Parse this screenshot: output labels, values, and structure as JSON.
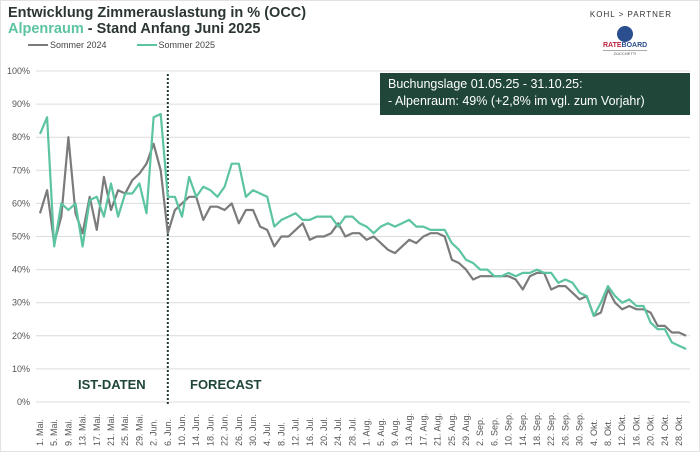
{
  "header": {
    "title_line1": "Entwicklung Zimmerauslastung in % (OCC)",
    "region": "Alpenraum",
    "title_line2_rest": " - Stand Anfang Juni 2025"
  },
  "brand": {
    "kohl": "KOHL > PARTNER",
    "rateboard_a": "RATE",
    "rateboard_b": "BOARD",
    "zucchetti": "ZUCCHETTI"
  },
  "annotation": {
    "line1": "Buchungslage 01.05.25 - 31.10.25:",
    "line2": "- Alpenraum:  49% (+2,8% im vgl. zum Vorjahr)"
  },
  "phases": {
    "actual": "IST-DATEN",
    "forecast": "FORECAST"
  },
  "colors": {
    "s2024": "#7b7b7b",
    "s2025": "#5cc4a0",
    "box": "#1f4638"
  },
  "chart_data": {
    "type": "line",
    "title": "Entwicklung Zimmerauslastung in % (OCC)",
    "xlabel": "",
    "ylabel": "",
    "ylim": [
      0,
      100
    ],
    "yticks": [
      "0%",
      "10%",
      "20%",
      "30%",
      "40%",
      "50%",
      "60%",
      "70%",
      "80%",
      "90%",
      "100%"
    ],
    "x_day_step": 2,
    "forecast_start_day": 36,
    "xtick_labels": [
      "1. Mai.",
      "5. Mai.",
      "9. Mai.",
      "13. Mai.",
      "17. Mai.",
      "21. Mai.",
      "25. Mai.",
      "29. Mai.",
      "2. Jun.",
      "6. Jun.",
      "10. Jun.",
      "14. Jun.",
      "18. Jun.",
      "22. Jun.",
      "26. Jun.",
      "30. Jun.",
      "4. Jul.",
      "8. Jul.",
      "12. Jul.",
      "16. Jul.",
      "20. Jul.",
      "24. Jul.",
      "28. Jul.",
      "1. Aug.",
      "5. Aug.",
      "9. Aug.",
      "13. Aug.",
      "17. Aug.",
      "21. Aug.",
      "25. Aug.",
      "29. Aug.",
      "2. Sep.",
      "6. Sep.",
      "10. Sep.",
      "14. Sep.",
      "18. Sep.",
      "22. Sep.",
      "26. Sep.",
      "30. Sep.",
      "4. Okt.",
      "8. Okt.",
      "12. Okt.",
      "16. Okt.",
      "20. Okt.",
      "24. Okt.",
      "28. Okt."
    ],
    "series": [
      {
        "name": "Sommer 2024",
        "values": [
          57,
          64,
          48,
          56,
          80,
          57,
          51,
          62,
          52,
          68,
          58,
          64,
          63,
          67,
          69,
          72,
          78,
          70,
          51,
          58,
          60,
          62,
          62,
          55,
          59,
          59,
          58,
          60,
          54,
          58,
          58,
          53,
          52,
          47,
          50,
          50,
          52,
          54,
          49,
          50,
          50,
          51,
          54,
          50,
          51,
          51,
          49,
          50,
          48,
          46,
          45,
          47,
          49,
          48,
          50,
          51,
          51,
          50,
          43,
          42,
          40,
          37,
          38,
          38,
          38,
          38,
          38,
          37,
          34,
          38,
          39,
          39,
          34,
          35,
          35,
          33,
          31,
          32,
          26,
          27,
          34,
          30,
          28,
          29,
          28,
          28,
          27,
          23,
          23,
          21,
          21,
          20
        ]
      },
      {
        "name": "Sommer 2025",
        "values": [
          81,
          86,
          47,
          60,
          58,
          60,
          47,
          61,
          62,
          56,
          66,
          56,
          63,
          63,
          66,
          57,
          86,
          87,
          62,
          62,
          56,
          68,
          62,
          65,
          64,
          62,
          65,
          72,
          72,
          62,
          64,
          63,
          62,
          53,
          55,
          56,
          57,
          55,
          55,
          56,
          56,
          56,
          53,
          56,
          56,
          54,
          53,
          51,
          53,
          54,
          53,
          54,
          55,
          53,
          53,
          52,
          52,
          52,
          48,
          46,
          43,
          42,
          40,
          40,
          38,
          38,
          39,
          38,
          39,
          39,
          40,
          39,
          39,
          36,
          37,
          36,
          33,
          32,
          26,
          30,
          35,
          32,
          30,
          31,
          29,
          29,
          24,
          22,
          22,
          18,
          17,
          16
        ]
      }
    ],
    "legend": "top-left"
  }
}
